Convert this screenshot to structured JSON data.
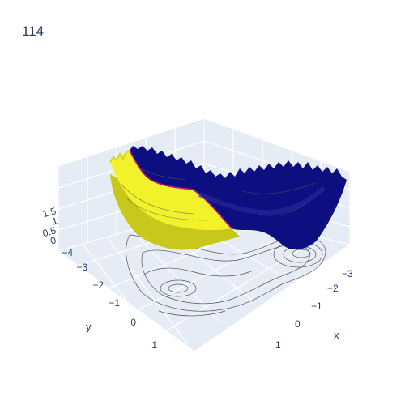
{
  "chart_data": {
    "type": "surface",
    "title": "114",
    "xlabel": "x",
    "ylabel": "y",
    "zlabel": "",
    "x_ticks": [
      "−3",
      "−2",
      "−1",
      "0",
      "1"
    ],
    "y_ticks": [
      "−4",
      "−3",
      "−2",
      "−1",
      "0",
      "1"
    ],
    "z_ticks": [
      "0",
      "0.5",
      "1",
      "1.5"
    ],
    "xlim": [
      -4,
      2
    ],
    "ylim": [
      -4,
      2
    ],
    "zlim": [
      0,
      1.6
    ],
    "colorscale": [
      "#0d0887",
      "#f0f921"
    ],
    "surface_colors": {
      "low": "#10107f",
      "high": "#f4f41f",
      "boundary": "#c21a6a"
    },
    "contour_projection": "z",
    "grid": true
  }
}
